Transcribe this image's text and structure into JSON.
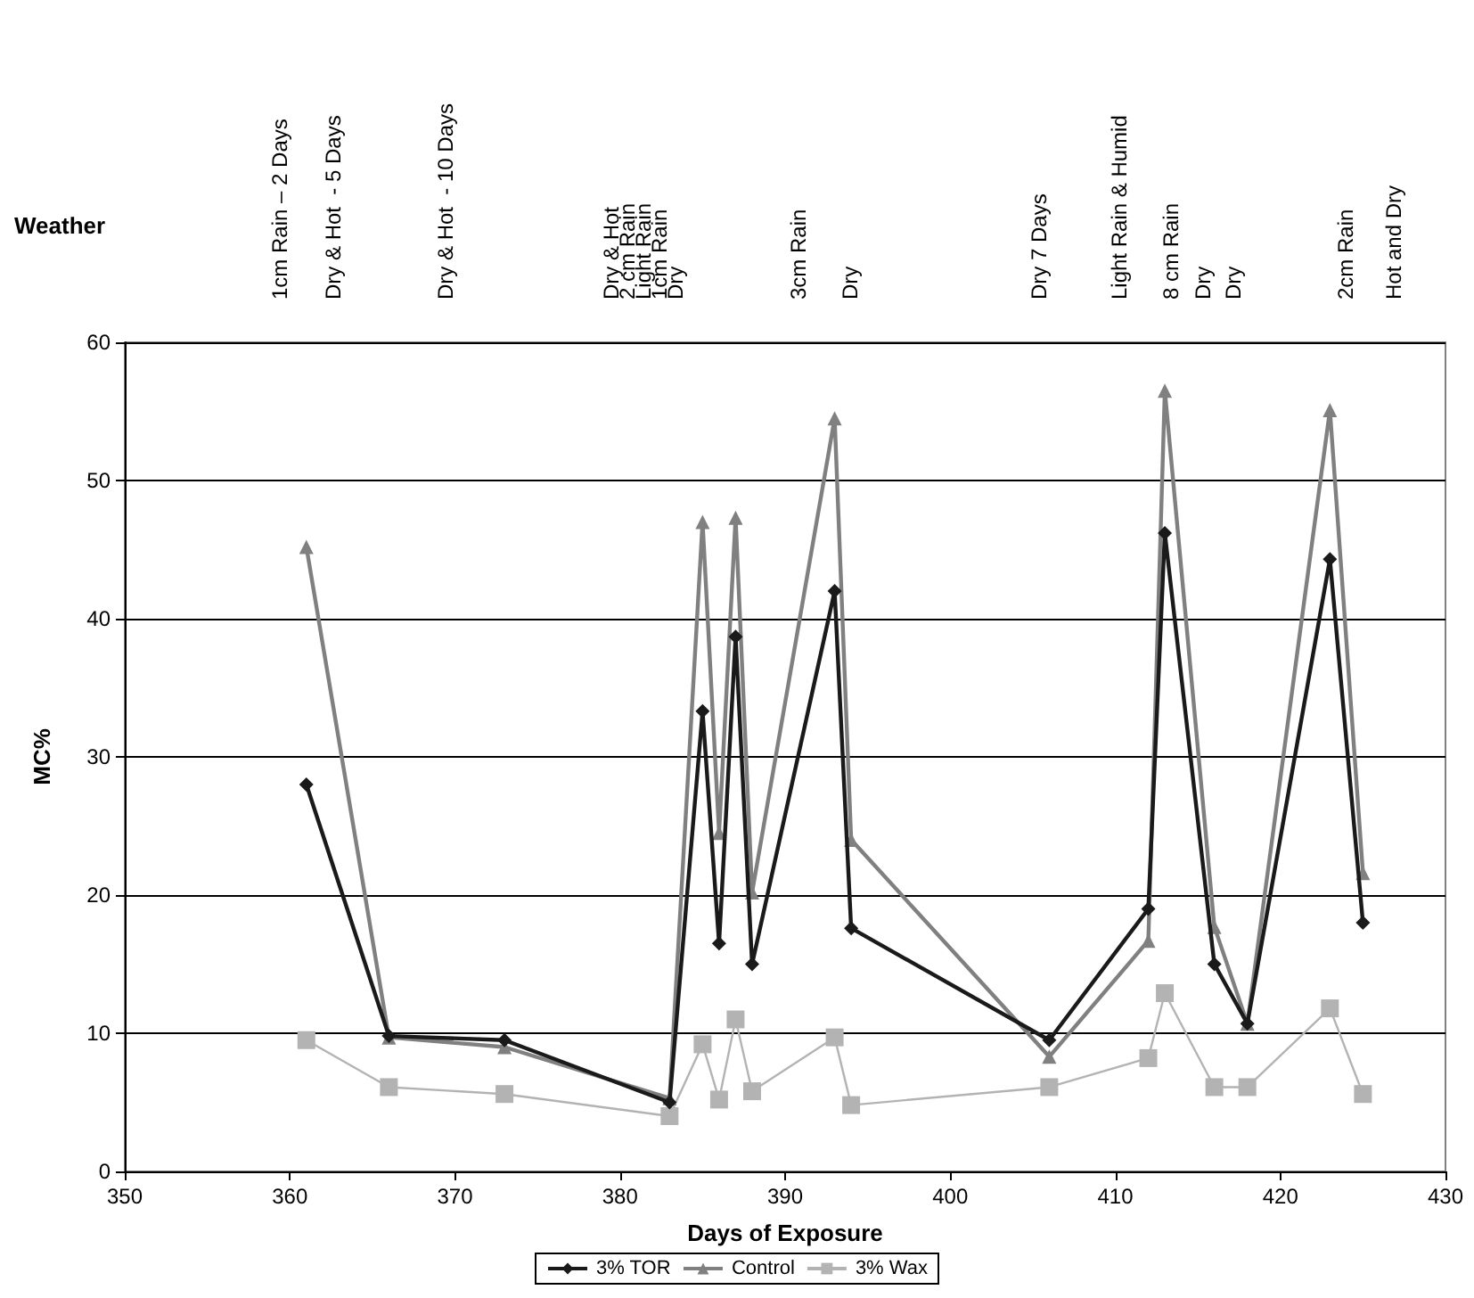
{
  "chart_data": {
    "type": "line",
    "xlabel": "Days of Exposure",
    "ylabel": "MC%",
    "x": [
      361,
      366,
      373,
      383,
      385,
      386,
      387,
      388,
      393,
      394,
      406,
      412,
      413,
      416,
      418,
      423,
      425
    ],
    "series": [
      {
        "name": "3% TOR",
        "color": "#1a1a1a",
        "marker": "diamond",
        "values": [
          28,
          9.8,
          9.5,
          5,
          33.3,
          16.5,
          38.7,
          15,
          42,
          17.6,
          9.5,
          19,
          46.2,
          15,
          10.7,
          44.3,
          18
        ]
      },
      {
        "name": "Control",
        "color": "#808080",
        "marker": "triangle",
        "values": [
          45.2,
          9.7,
          9,
          5.3,
          47,
          24.5,
          47.3,
          20.2,
          54.5,
          24,
          8.3,
          16.7,
          56.5,
          17.7,
          10.7,
          55.1,
          21.6
        ]
      },
      {
        "name": "3% Wax",
        "color": "#b3b3b3",
        "marker": "square",
        "values": [
          9.5,
          6.1,
          5.6,
          4,
          9.2,
          5.2,
          11,
          5.8,
          9.7,
          4.8,
          6.1,
          8.2,
          12.9,
          6.1,
          6.1,
          11.8,
          5.6
        ]
      }
    ],
    "xlim": [
      350,
      430
    ],
    "xticks": [
      350,
      360,
      370,
      380,
      390,
      400,
      410,
      420,
      430
    ],
    "ylim": [
      0,
      60
    ],
    "yticks": [
      0,
      10,
      20,
      30,
      40,
      50,
      60
    ],
    "grid": "y",
    "legend": "bottom",
    "annotations": [
      "Weather",
      "1cm Rain – 2 Days",
      "Dry & Hot  - 5 Days",
      "Dry & Hot  - 10 Days",
      "Dry & Hot",
      "2 cm Rain",
      "Light Rain",
      "1cm Rain",
      "Dry",
      "3cm Rain",
      "Dry",
      "Dry 7 Days",
      "Light Rain & Humid",
      "8 cm Rain",
      "Dry",
      "Dry",
      "2cm Rain",
      "Hot and Dry"
    ]
  }
}
